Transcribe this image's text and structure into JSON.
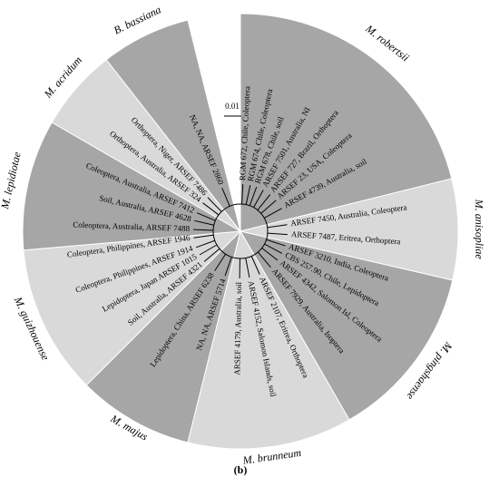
{
  "scale_bar": "0.01",
  "caption": "(b)",
  "clades": [
    {
      "name": "M. robertsii",
      "leaves": [
        "RGM 672, Chile, Coleoptera",
        "RGM 674, Chile, Coleoptera",
        "RGM 678, Chile, soil",
        "ARSEF 7501, Australia, NI",
        "ARSEF 727, Brazil, Orthoptera",
        "ARSEF 23, USA, Coleoptera",
        "ARSEF 4739, Australia, soil"
      ]
    },
    {
      "name": "M. anisopliae",
      "leaves": [
        "ARSEF 7450, Australia, Coleoptera",
        "ARSEF 7487, Eritrea, Orthoptera"
      ]
    },
    {
      "name": "M. pingshaense",
      "leaves": [
        "ARSEF 3210, India, Coleoptera",
        "CBS 257.90, Chile, Lepidoptera",
        "ARSEF 4342, Salomon Isl, Coleoptera",
        "ARSEF 7929, Australia, Isoptera"
      ]
    },
    {
      "name": "M. brunneum",
      "leaves": [
        "ARSEF 2107, Eritrea, Orthoptera",
        "ARSEF 4152, Salomon Islands, soil",
        "ARSEF 4179, Australia, soil"
      ]
    },
    {
      "name": "M. majus",
      "leaves": [
        "NA, NA, ARSEF 5714",
        "Lepidoptera, China, ARSEF 6238"
      ]
    },
    {
      "name": "M. guizhouense",
      "leaves": [
        "Soil, Australia, ARSEF 4321",
        "Lepidoptera, Japan ARSEF 1015",
        "Coleoptera, Philippines, ARSEF 1914",
        "Coleoptera, Philippines, ARSEF 1946"
      ]
    },
    {
      "name": "M. lepidiotae",
      "leaves": [
        "Coleoptera, Australia, ARSEF 7488",
        "Soil, Australia, ARSEF 4628",
        "Coleoptera, Australia, ARSEF 7412"
      ]
    },
    {
      "name": "M. acridum",
      "leaves": [
        "Orthoptera, Australia, ARSEF 324",
        "Orthoptera, Niger, ARSEF 7486"
      ]
    },
    {
      "name": "B. bassiana",
      "leaves": [
        "NA, NA, ARSEF 2860"
      ]
    }
  ]
}
